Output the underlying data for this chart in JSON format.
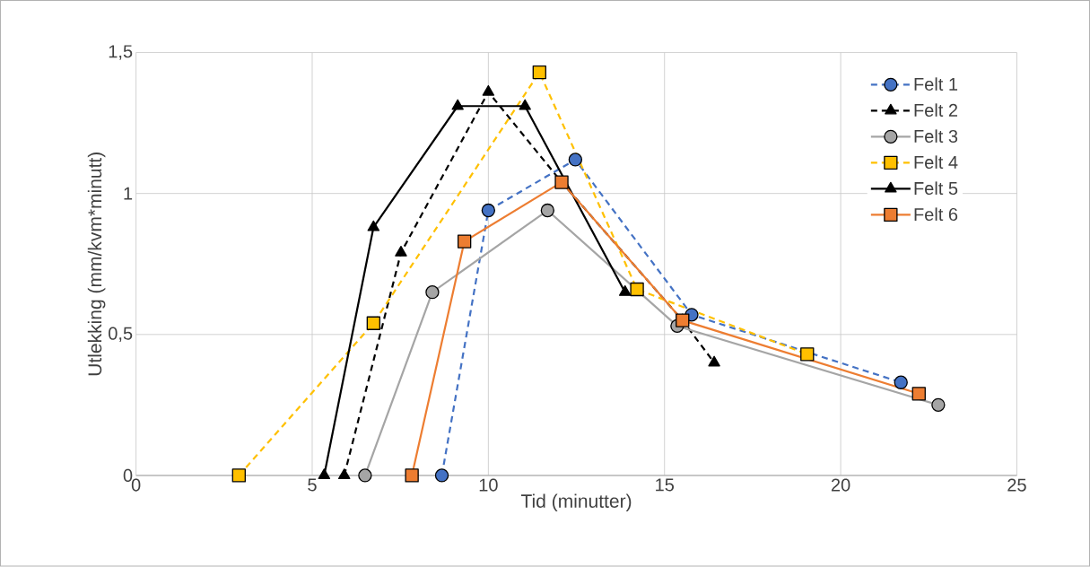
{
  "chart_data": {
    "type": "line",
    "xlabel": "Tid (minutter)",
    "ylabel": "Utlekking (mm/kvm*minutt)",
    "xlim": [
      0,
      25
    ],
    "xticks": [
      0,
      5,
      10,
      15,
      20,
      25
    ],
    "ylim": [
      0,
      1.5
    ],
    "yticks": [
      0,
      {
        "value": 0.5,
        "label": "0,5"
      },
      1,
      {
        "value": 1.5,
        "label": "1,5"
      }
    ],
    "grid": true,
    "legend": "right",
    "series": [
      {
        "name": "Felt 1",
        "color": "#4472c4",
        "marker": "circle",
        "line_style": "dashed",
        "x": [
          8.68,
          10.0,
          12.47,
          15.77,
          21.71
        ],
        "values": [
          0,
          0.94,
          1.12,
          0.57,
          0.33
        ]
      },
      {
        "name": "Felt 2",
        "color": "#000000",
        "marker": "triangle",
        "line_style": "dashed",
        "x": [
          5.91,
          7.52,
          10.0,
          12.08,
          15.51,
          16.41
        ],
        "values": [
          0,
          0.79,
          1.36,
          1.04,
          0.55,
          0.4
        ]
      },
      {
        "name": "Felt 3",
        "color": "#a5a5a5",
        "marker": "circle",
        "line_style": "solid",
        "x": [
          6.5,
          8.41,
          11.68,
          15.36,
          22.77
        ],
        "values": [
          0,
          0.65,
          0.94,
          0.53,
          0.25
        ]
      },
      {
        "name": "Felt 4",
        "color": "#ffc000",
        "marker": "square",
        "line_style": "dashed",
        "x": [
          2.92,
          6.74,
          11.45,
          14.22,
          19.05
        ],
        "values": [
          0,
          0.54,
          1.43,
          0.66,
          0.43
        ]
      },
      {
        "name": "Felt 5",
        "color": "#000000",
        "marker": "triangle",
        "line_style": "solid",
        "x": [
          5.34,
          6.74,
          9.13,
          11.04,
          13.88
        ],
        "values": [
          0,
          0.88,
          1.31,
          1.31,
          0.65
        ]
      },
      {
        "name": "Felt 6",
        "color": "#ed7d31",
        "marker": "square",
        "line_style": "solid",
        "x": [
          7.83,
          9.32,
          12.08,
          15.51,
          22.22
        ],
        "values": [
          0,
          0.83,
          1.04,
          0.55,
          0.29
        ]
      }
    ]
  }
}
